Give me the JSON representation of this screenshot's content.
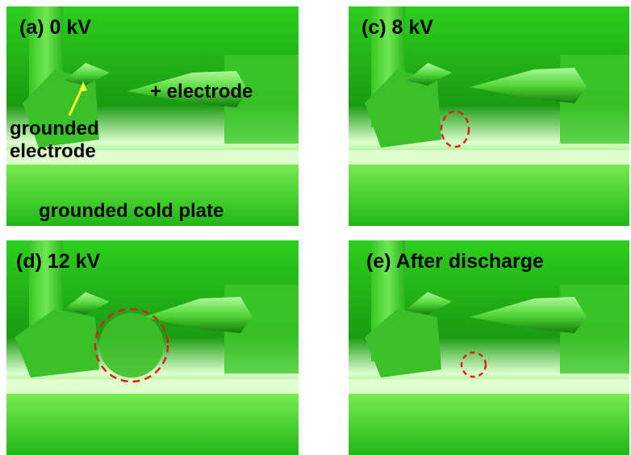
{
  "panels": [
    {
      "label": "(a) 0 kV"
    },
    {
      "label": "(c) 8 kV"
    },
    {
      "label": "(d) 12 kV"
    },
    {
      "label": "(e) After discharge"
    }
  ],
  "annotations": {
    "plus_electrode": "+ electrode",
    "grounded_electrode_line1": "grounded",
    "grounded_electrode_line2": "electrode",
    "cold_plate": "grounded cold plate"
  },
  "colors": {
    "green_bright": "#49e62f",
    "green_mid": "#1fb014",
    "green_dark": "#0b5a07",
    "marker_red": "#e0201a",
    "arrow_yellow": "#ffff30"
  }
}
